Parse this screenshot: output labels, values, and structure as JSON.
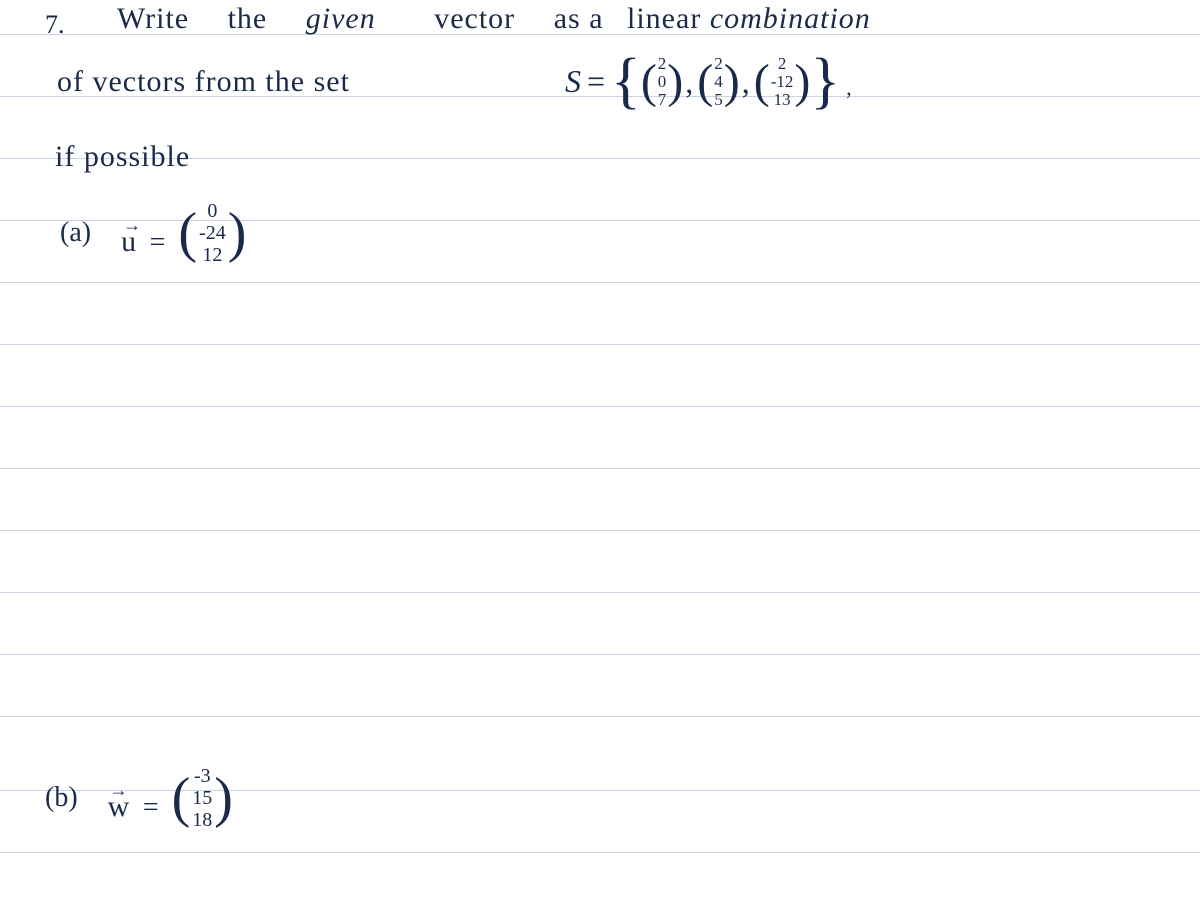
{
  "ruled_lines": {
    "color": "#c8d4e3",
    "positions": [
      34,
      96,
      158,
      220,
      282,
      344,
      406,
      468,
      530,
      592,
      654,
      716,
      790,
      852
    ]
  },
  "ink_color": "#1a2a4a",
  "problem": {
    "number": "7.",
    "line1_words": [
      "Write",
      "the",
      "given",
      "vector",
      "as",
      "a",
      "linear",
      "combination"
    ],
    "line2_prefix": "of vectors   from  the set",
    "set_label": "S",
    "set_vectors": [
      [
        "2",
        "0",
        "7"
      ],
      [
        "2",
        "4",
        "5"
      ],
      [
        "2",
        "-12",
        "13"
      ]
    ],
    "line3": "if   possible",
    "part_a": {
      "label": "(a)",
      "vec_name": "u",
      "values": [
        "0",
        "-24",
        "12"
      ]
    },
    "part_b": {
      "label": "(b)",
      "vec_name": "w",
      "values": [
        "-3",
        "15",
        "18"
      ]
    }
  }
}
